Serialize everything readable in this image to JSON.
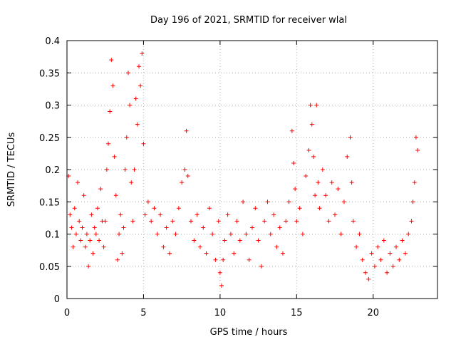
{
  "chart_data": {
    "type": "scatter",
    "title": "Day 196 of 2021, SRMTID for receiver wlal",
    "xlabel": "GPS time / hours",
    "ylabel": "SRMTID / TECUs",
    "xlim": [
      0,
      24.2
    ],
    "ylim": [
      0,
      0.4
    ],
    "xticks": [
      0,
      5,
      10,
      15,
      20
    ],
    "xtick_labels": [
      "0",
      "5",
      "10",
      "15",
      "20"
    ],
    "yticks": [
      0,
      0.05,
      0.1,
      0.15,
      0.2,
      0.25,
      0.3,
      0.35,
      0.4
    ],
    "ytick_labels": [
      "0",
      "0.05",
      "0.1",
      "0.15",
      "0.2",
      "0.25",
      "0.3",
      "0.35",
      "0.4"
    ],
    "grid": true,
    "marker": "+",
    "series": [
      {
        "name": "SRMTID",
        "color": "#ff0000",
        "points": [
          [
            0.1,
            0.19
          ],
          [
            0.2,
            0.13
          ],
          [
            0.3,
            0.11
          ],
          [
            0.4,
            0.08
          ],
          [
            0.5,
            0.14
          ],
          [
            0.6,
            0.1
          ],
          [
            0.7,
            0.18
          ],
          [
            0.8,
            0.12
          ],
          [
            0.9,
            0.09
          ],
          [
            1.0,
            0.11
          ],
          [
            1.1,
            0.16
          ],
          [
            1.2,
            0.08
          ],
          [
            1.3,
            0.1
          ],
          [
            1.4,
            0.05
          ],
          [
            1.5,
            0.09
          ],
          [
            1.6,
            0.13
          ],
          [
            1.7,
            0.07
          ],
          [
            1.8,
            0.11
          ],
          [
            1.9,
            0.1
          ],
          [
            2.0,
            0.14
          ],
          [
            2.1,
            0.09
          ],
          [
            2.2,
            0.17
          ],
          [
            2.3,
            0.12
          ],
          [
            2.4,
            0.08
          ],
          [
            2.5,
            0.12
          ],
          [
            2.6,
            0.2
          ],
          [
            2.7,
            0.24
          ],
          [
            2.8,
            0.29
          ],
          [
            2.9,
            0.37
          ],
          [
            3.0,
            0.33
          ],
          [
            3.1,
            0.22
          ],
          [
            3.2,
            0.16
          ],
          [
            3.3,
            0.06
          ],
          [
            3.4,
            0.1
          ],
          [
            3.5,
            0.13
          ],
          [
            3.6,
            0.07
          ],
          [
            3.7,
            0.11
          ],
          [
            3.8,
            0.2
          ],
          [
            3.9,
            0.25
          ],
          [
            4.0,
            0.35
          ],
          [
            4.1,
            0.3
          ],
          [
            4.2,
            0.18
          ],
          [
            4.3,
            0.12
          ],
          [
            4.4,
            0.2
          ],
          [
            4.5,
            0.31
          ],
          [
            4.6,
            0.27
          ],
          [
            4.7,
            0.36
          ],
          [
            4.8,
            0.33
          ],
          [
            4.9,
            0.38
          ],
          [
            5.0,
            0.24
          ],
          [
            5.1,
            0.13
          ],
          [
            5.3,
            0.15
          ],
          [
            5.5,
            0.12
          ],
          [
            5.7,
            0.14
          ],
          [
            5.9,
            0.1
          ],
          [
            6.1,
            0.13
          ],
          [
            6.3,
            0.08
          ],
          [
            6.5,
            0.11
          ],
          [
            6.7,
            0.07
          ],
          [
            6.9,
            0.12
          ],
          [
            7.1,
            0.1
          ],
          [
            7.3,
            0.14
          ],
          [
            7.5,
            0.18
          ],
          [
            7.7,
            0.2
          ],
          [
            7.8,
            0.26
          ],
          [
            7.9,
            0.19
          ],
          [
            8.1,
            0.12
          ],
          [
            8.3,
            0.09
          ],
          [
            8.5,
            0.13
          ],
          [
            8.7,
            0.08
          ],
          [
            8.9,
            0.11
          ],
          [
            9.1,
            0.07
          ],
          [
            9.3,
            0.14
          ],
          [
            9.5,
            0.1
          ],
          [
            9.7,
            0.06
          ],
          [
            9.9,
            0.12
          ],
          [
            10.0,
            0.04
          ],
          [
            10.1,
            0.02
          ],
          [
            10.2,
            0.06
          ],
          [
            10.3,
            0.09
          ],
          [
            10.5,
            0.13
          ],
          [
            10.7,
            0.1
          ],
          [
            10.9,
            0.07
          ],
          [
            11.1,
            0.12
          ],
          [
            11.3,
            0.09
          ],
          [
            11.5,
            0.15
          ],
          [
            11.7,
            0.1
          ],
          [
            11.9,
            0.06
          ],
          [
            12.1,
            0.11
          ],
          [
            12.3,
            0.14
          ],
          [
            12.5,
            0.09
          ],
          [
            12.7,
            0.05
          ],
          [
            12.9,
            0.12
          ],
          [
            13.1,
            0.15
          ],
          [
            13.3,
            0.1
          ],
          [
            13.5,
            0.13
          ],
          [
            13.7,
            0.08
          ],
          [
            13.9,
            0.11
          ],
          [
            14.1,
            0.07
          ],
          [
            14.3,
            0.12
          ],
          [
            14.5,
            0.15
          ],
          [
            14.7,
            0.26
          ],
          [
            14.8,
            0.21
          ],
          [
            14.9,
            0.17
          ],
          [
            15.0,
            0.12
          ],
          [
            15.2,
            0.14
          ],
          [
            15.4,
            0.1
          ],
          [
            15.6,
            0.19
          ],
          [
            15.8,
            0.23
          ],
          [
            15.9,
            0.3
          ],
          [
            16.0,
            0.27
          ],
          [
            16.1,
            0.22
          ],
          [
            16.2,
            0.16
          ],
          [
            16.3,
            0.3
          ],
          [
            16.4,
            0.18
          ],
          [
            16.5,
            0.14
          ],
          [
            16.7,
            0.2
          ],
          [
            16.9,
            0.16
          ],
          [
            17.1,
            0.12
          ],
          [
            17.3,
            0.18
          ],
          [
            17.5,
            0.13
          ],
          [
            17.7,
            0.17
          ],
          [
            17.9,
            0.1
          ],
          [
            18.1,
            0.15
          ],
          [
            18.3,
            0.22
          ],
          [
            18.5,
            0.25
          ],
          [
            18.6,
            0.18
          ],
          [
            18.7,
            0.12
          ],
          [
            18.9,
            0.08
          ],
          [
            19.1,
            0.1
          ],
          [
            19.3,
            0.06
          ],
          [
            19.5,
            0.04
          ],
          [
            19.7,
            0.03
          ],
          [
            19.9,
            0.07
          ],
          [
            20.1,
            0.05
          ],
          [
            20.3,
            0.08
          ],
          [
            20.5,
            0.06
          ],
          [
            20.7,
            0.09
          ],
          [
            20.9,
            0.04
          ],
          [
            21.1,
            0.07
          ],
          [
            21.3,
            0.05
          ],
          [
            21.5,
            0.08
          ],
          [
            21.7,
            0.06
          ],
          [
            21.9,
            0.09
          ],
          [
            22.1,
            0.07
          ],
          [
            22.3,
            0.1
          ],
          [
            22.5,
            0.12
          ],
          [
            22.6,
            0.15
          ],
          [
            22.7,
            0.18
          ],
          [
            22.8,
            0.25
          ],
          [
            22.9,
            0.23
          ]
        ]
      }
    ]
  }
}
